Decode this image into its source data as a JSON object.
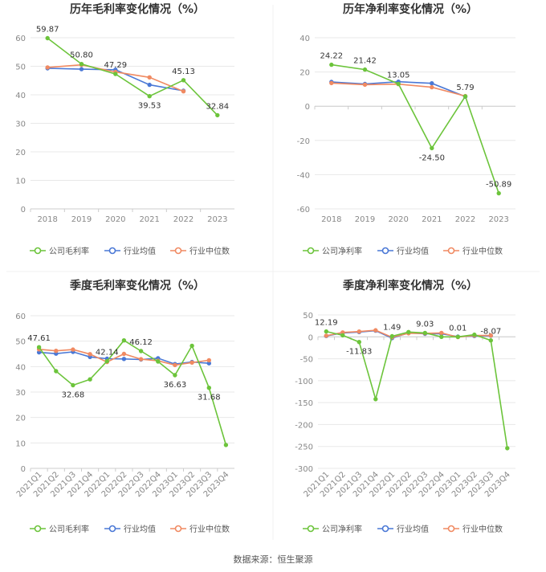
{
  "source": "数据来源：恒生聚源",
  "legend_labels": [
    "公司毛利率",
    "行业均值",
    "行业中位数",
    "公司净利率"
  ],
  "colors": {
    "company": "#6cc43b",
    "industry_avg": "#4a78d6",
    "industry_median": "#f08a62",
    "grid": "#e8e8e8",
    "axis_text": "#888888",
    "title": "#333333"
  },
  "chart_data": [
    {
      "type": "line",
      "title": "历年毛利率变化情况（%）",
      "categories": [
        "2018",
        "2019",
        "2020",
        "2021",
        "2022",
        "2023"
      ],
      "ylim": [
        0,
        60
      ],
      "yticks": [
        0,
        10,
        20,
        30,
        40,
        50,
        60
      ],
      "grid": true,
      "legend": "bottom-center",
      "series": [
        {
          "name": "公司毛利率",
          "values": [
            59.87,
            50.8,
            47.29,
            39.53,
            45.13,
            32.84
          ],
          "labels": [
            "59.87",
            "50.80",
            "47.29",
            "39.53",
            "45.13",
            "32.84"
          ]
        },
        {
          "name": "行业均值",
          "values": [
            49.3,
            49.0,
            48.8,
            43.5,
            41.4,
            null
          ]
        },
        {
          "name": "行业中位数",
          "values": [
            49.6,
            50.5,
            48.0,
            46.1,
            41.2,
            null
          ]
        }
      ]
    },
    {
      "type": "line",
      "title": "历年净利率变化情况（%）",
      "categories": [
        "2018",
        "2019",
        "2020",
        "2021",
        "2022",
        "2023"
      ],
      "ylim": [
        -60,
        40
      ],
      "yticks": [
        -60,
        -40,
        -20,
        0,
        20,
        40
      ],
      "grid": true,
      "legend": "bottom-center",
      "series": [
        {
          "name": "公司净利率",
          "values": [
            24.22,
            21.42,
            13.05,
            -24.5,
            5.79,
            -50.89
          ],
          "labels": [
            "24.22",
            "21.42",
            "13.05",
            "-24.50",
            "5.79",
            "-50.89"
          ]
        },
        {
          "name": "行业均值",
          "values": [
            14.2,
            13.0,
            14.3,
            13.4,
            5.6,
            null
          ]
        },
        {
          "name": "行业中位数",
          "values": [
            13.5,
            12.6,
            12.9,
            11.1,
            5.9,
            null
          ]
        }
      ]
    },
    {
      "type": "line",
      "title": "季度毛利率变化情况（%）",
      "categories": [
        "2021Q1",
        "2021Q2",
        "2021Q3",
        "2021Q4",
        "2022Q1",
        "2022Q2",
        "2022Q3",
        "2022Q4",
        "2023Q1",
        "2023Q2",
        "2023Q3",
        "2023Q4"
      ],
      "ylim": [
        0,
        60
      ],
      "yticks": [
        0,
        10,
        20,
        30,
        40,
        50,
        60
      ],
      "grid": true,
      "legend": "bottom-center",
      "series": [
        {
          "name": "公司毛利率",
          "values": [
            47.61,
            38.2,
            32.68,
            35.0,
            42.14,
            50.3,
            46.12,
            42.0,
            36.63,
            48.2,
            31.68,
            9.2
          ],
          "labels": [
            "47.61",
            "",
            "32.68",
            "",
            "42.14",
            "",
            "46.12",
            "",
            "36.63",
            "",
            "31.68",
            ""
          ]
        },
        {
          "name": "行业均值",
          "values": [
            45.6,
            45.1,
            45.8,
            43.8,
            43.1,
            43.0,
            42.8,
            43.3,
            41.0,
            41.8,
            41.3,
            null
          ]
        },
        {
          "name": "行业中位数",
          "values": [
            46.8,
            46.2,
            46.7,
            44.9,
            41.8,
            45.0,
            42.9,
            42.3,
            40.6,
            41.6,
            42.5,
            null
          ]
        }
      ]
    },
    {
      "type": "line",
      "title": "季度净利率变化情况（%）",
      "categories": [
        "2021Q1",
        "2021Q2",
        "2021Q3",
        "2021Q4",
        "2022Q1",
        "2022Q2",
        "2022Q3",
        "2022Q4",
        "2023Q1",
        "2023Q2",
        "2023Q3",
        "2023Q4"
      ],
      "ylim": [
        -300,
        50
      ],
      "yticks": [
        -300,
        -250,
        -200,
        -150,
        -100,
        -50,
        0,
        50
      ],
      "grid": true,
      "legend": "bottom-center",
      "series": [
        {
          "name": "公司净利率",
          "values": [
            12.19,
            3.5,
            -11.83,
            -142.0,
            1.49,
            11.0,
            9.03,
            0.0,
            0.01,
            5.0,
            -8.07,
            -254.0
          ],
          "labels": [
            "12.19",
            "",
            "-11.83",
            "",
            "1.49",
            "",
            "9.03",
            "",
            "0.01",
            "",
            "-8.07",
            ""
          ]
        },
        {
          "name": "行业均值",
          "values": [
            2.0,
            9.0,
            11.0,
            14.0,
            -3.0,
            9.0,
            7.0,
            7.0,
            0.5,
            2.0,
            2.5,
            null
          ]
        },
        {
          "name": "行业中位数",
          "values": [
            2.5,
            10.0,
            12.0,
            15.0,
            -1.0,
            8.0,
            8.0,
            9.0,
            -0.5,
            3.0,
            3.0,
            null
          ]
        }
      ]
    }
  ]
}
